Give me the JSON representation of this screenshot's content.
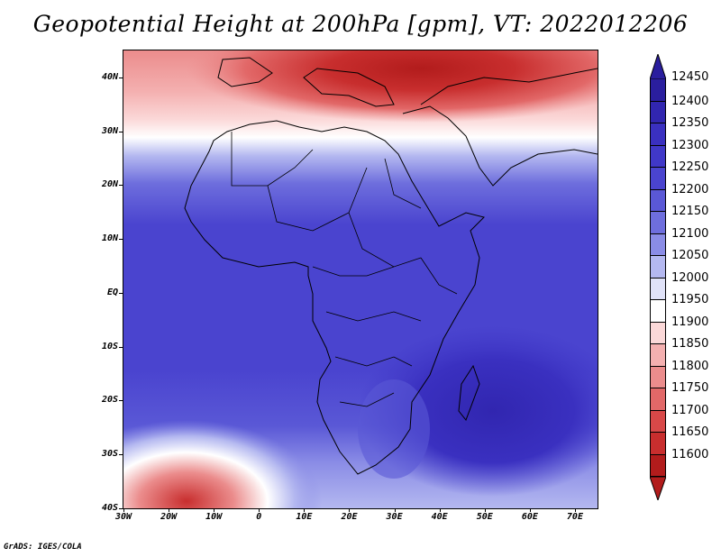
{
  "title": "Geopotential Height at 200hPa [gpm], VT: 2022012206",
  "credit": "GrADS: IGES/COLA",
  "map": {
    "lon_range": [
      -30,
      75
    ],
    "lat_range": [
      -40,
      45
    ],
    "lat_ticks": [
      "40N",
      "30N",
      "20N",
      "10N",
      "EQ",
      "10S",
      "20S",
      "30S",
      "40S"
    ],
    "lat_values": [
      40,
      30,
      20,
      10,
      0,
      -10,
      -20,
      -30,
      -40
    ],
    "lon_ticks": [
      "30W",
      "20W",
      "10W",
      "0",
      "10E",
      "20E",
      "30E",
      "40E",
      "50E",
      "60E",
      "70E"
    ],
    "lon_values": [
      -30,
      -20,
      -10,
      0,
      10,
      20,
      30,
      40,
      50,
      60,
      70
    ],
    "field": "200hPa geopotential height",
    "units": "gpm",
    "pattern": "low heights (red) over Mediterranean/north Africa at 35-45N and a cutoff trough near 40S 15W; high heights (blue) over tropics, peak 12400+ over southern Indian Ocean near Madagascar"
  },
  "colorbar": {
    "levels": [
      "12450",
      "12400",
      "12350",
      "12300",
      "12250",
      "12200",
      "12150",
      "12100",
      "12050",
      "12000",
      "11950",
      "11900",
      "11850",
      "11800",
      "11750",
      "11700",
      "11650",
      "11600"
    ],
    "colors": [
      "#2a1e9e",
      "#3126b0",
      "#3a30c0",
      "#4038c8",
      "#4a44cf",
      "#5a58d6",
      "#6e6edd",
      "#8a8ce6",
      "#b4b8f0",
      "#e0e2f8",
      "#ffffff",
      "#fbd8d8",
      "#f4b0b0",
      "#eb8c8c",
      "#e26868",
      "#d84848",
      "#c82e2e",
      "#b21c1c"
    ],
    "top_arrow_color": "#2a1e9e",
    "bottom_arrow_color": "#b21c1c"
  }
}
